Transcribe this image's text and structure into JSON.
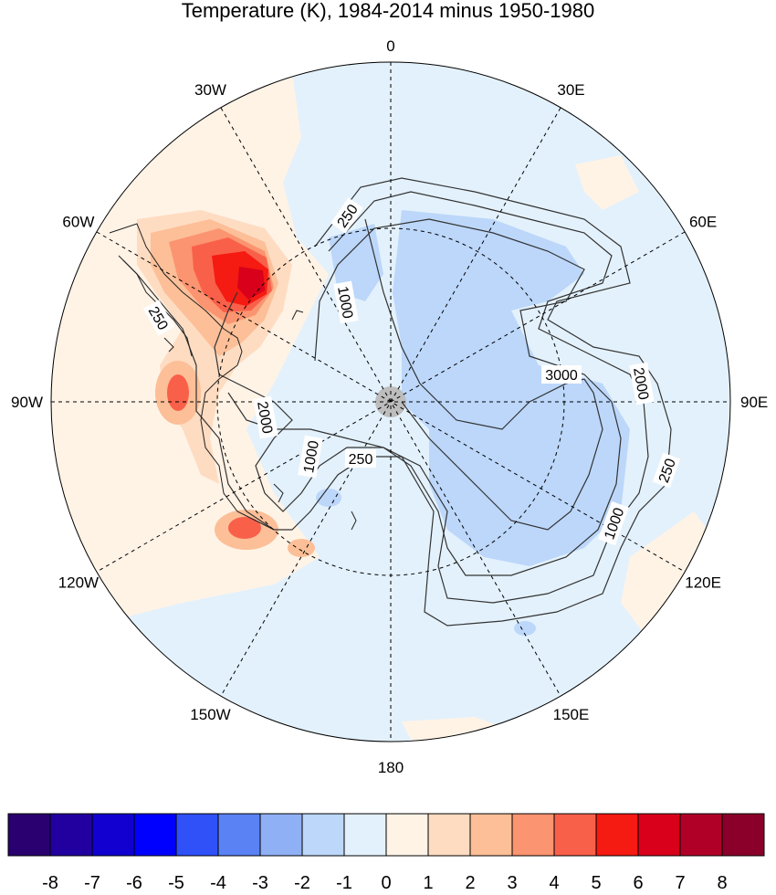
{
  "title": "Temperature (K), 1984-2014 minus 1950-1980",
  "longitude_labels": [
    {
      "label": "0",
      "deg": 0
    },
    {
      "label": "30E",
      "deg": 30
    },
    {
      "label": "60E",
      "deg": 60
    },
    {
      "label": "90E",
      "deg": 90
    },
    {
      "label": "120E",
      "deg": 120
    },
    {
      "label": "150E",
      "deg": 150
    },
    {
      "label": "180",
      "deg": 180
    },
    {
      "label": "150W",
      "deg": 210
    },
    {
      "label": "120W",
      "deg": 240
    },
    {
      "label": "90W",
      "deg": 270
    },
    {
      "label": "60W",
      "deg": 300
    },
    {
      "label": "30W",
      "deg": 330
    }
  ],
  "contour_labels": [
    "250",
    "1000",
    "2000",
    "3000"
  ],
  "colorbar": {
    "tick_labels": [
      "-8",
      "-7",
      "-6",
      "-5",
      "-4",
      "-3",
      "-2",
      "-1",
      "0",
      "1",
      "2",
      "3",
      "4",
      "5",
      "6",
      "7",
      "8"
    ],
    "colors": [
      "#2a0070",
      "#2200a0",
      "#1100d0",
      "#0000ff",
      "#3050f8",
      "#5a82f5",
      "#8fb0f5",
      "#bcd7fa",
      "#e3f1fc",
      "#fff3e6",
      "#fedcc2",
      "#fcbf98",
      "#fb9470",
      "#f9604a",
      "#f51a12",
      "#d8001a",
      "#b00028",
      "#8a002a"
    ]
  }
}
